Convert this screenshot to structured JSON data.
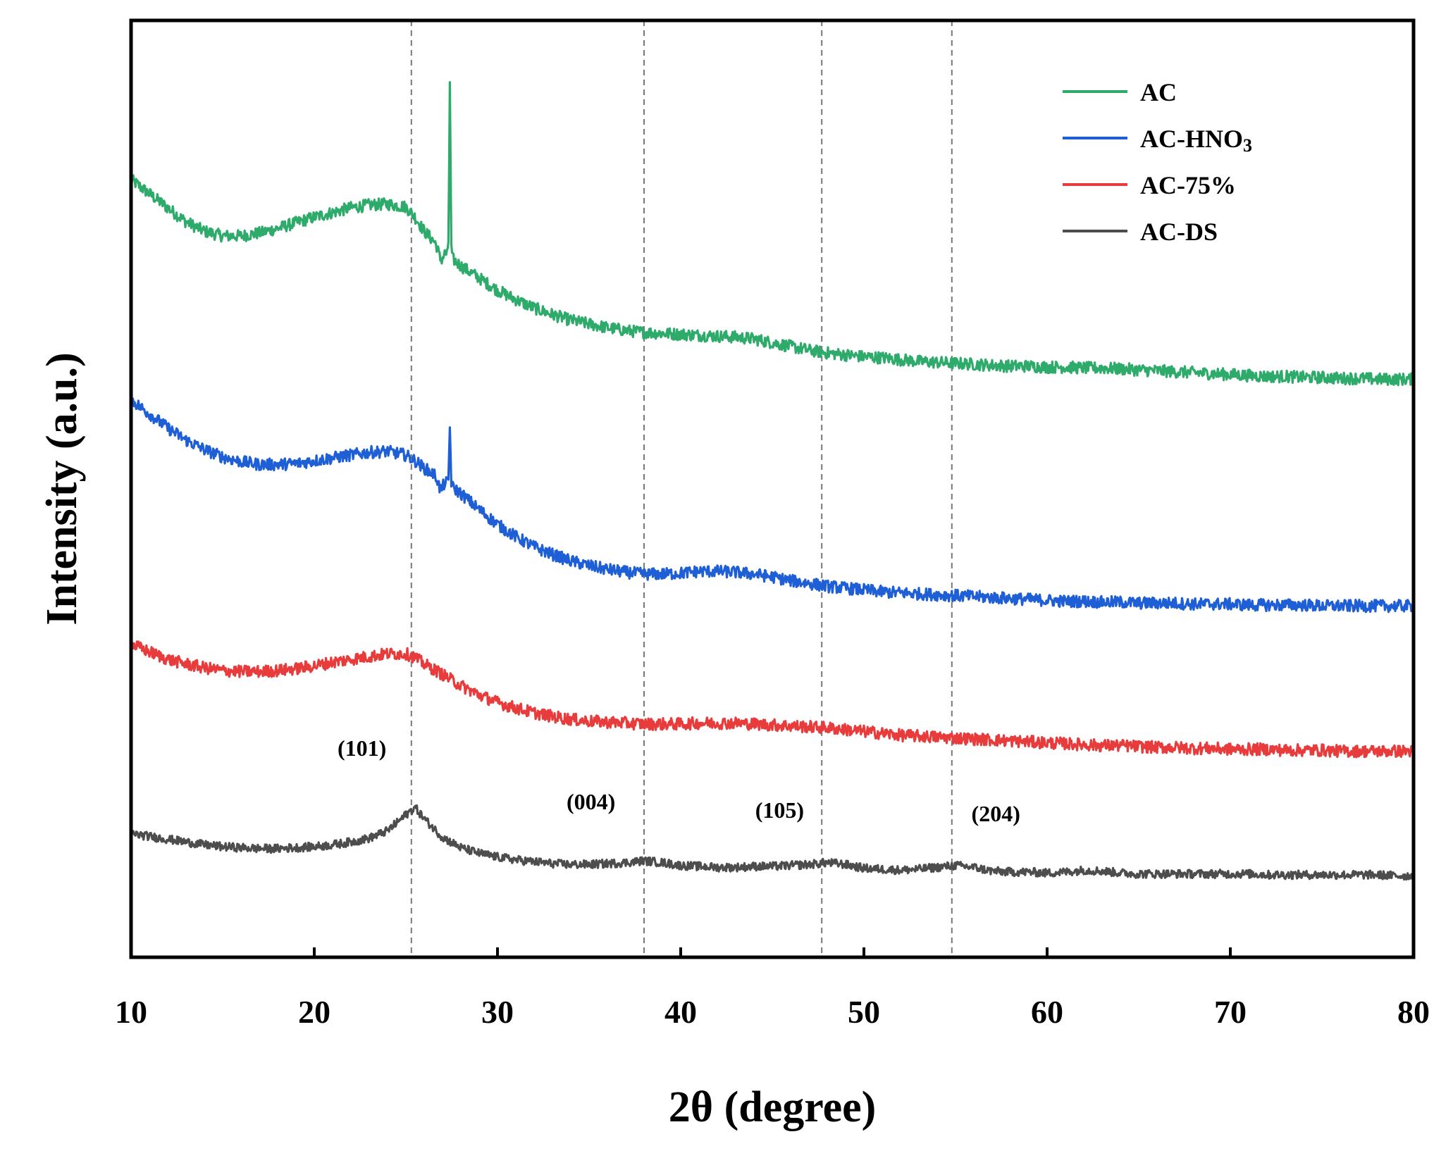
{
  "chart_data": {
    "type": "line",
    "title": "",
    "xlabel": "2θ (degree)",
    "ylabel": "Intensity (a.u.)",
    "xlim": [
      10,
      80
    ],
    "ylim": [
      0,
      1
    ],
    "xticks": [
      "10",
      "20",
      "30",
      "40",
      "50",
      "60",
      "70",
      "80"
    ],
    "x": [
      10,
      11,
      12,
      13,
      14,
      15,
      16,
      17,
      18,
      19,
      20,
      21,
      22,
      23,
      24,
      25,
      25.5,
      26,
      27,
      28,
      29,
      30,
      31,
      32,
      33,
      34,
      35,
      36,
      37,
      38,
      39,
      40,
      41,
      42,
      43,
      44,
      45,
      46,
      47,
      48,
      49,
      50,
      51,
      52,
      53,
      54,
      55,
      56,
      57,
      58,
      59,
      60,
      61,
      62,
      63,
      64,
      65,
      66,
      67,
      68,
      69,
      70,
      71,
      72,
      73,
      74,
      75,
      76,
      77,
      78,
      79,
      80
    ],
    "series": [
      {
        "name": "AC",
        "color": "#2eaa6a",
        "values": [
          0.83,
          0.815,
          0.8,
          0.785,
          0.775,
          0.77,
          0.77,
          0.773,
          0.778,
          0.784,
          0.79,
          0.795,
          0.8,
          0.803,
          0.804,
          0.801,
          0.79,
          0.775,
          0.755,
          0.738,
          0.725,
          0.712,
          0.702,
          0.693,
          0.686,
          0.68,
          0.676,
          0.672,
          0.669,
          0.667,
          0.666,
          0.665,
          0.664,
          0.663,
          0.662,
          0.66,
          0.656,
          0.652,
          0.648,
          0.645,
          0.643,
          0.641,
          0.64,
          0.638,
          0.636,
          0.635,
          0.634,
          0.633,
          0.632,
          0.631,
          0.631,
          0.63,
          0.63,
          0.629,
          0.629,
          0.628,
          0.627,
          0.626,
          0.625,
          0.624,
          0.623,
          0.622,
          0.621,
          0.62,
          0.62,
          0.619,
          0.619,
          0.618,
          0.618,
          0.617,
          0.617,
          0.617
        ],
        "sharp_peak": {
          "x": 27.4,
          "y": 0.935
        }
      },
      {
        "name": "AC-HNO3",
        "color": "#1f5fd6",
        "values": [
          0.595,
          0.58,
          0.565,
          0.552,
          0.542,
          0.534,
          0.529,
          0.526,
          0.526,
          0.527,
          0.53,
          0.533,
          0.536,
          0.539,
          0.54,
          0.536,
          0.53,
          0.522,
          0.51,
          0.495,
          0.478,
          0.462,
          0.449,
          0.438,
          0.43,
          0.423,
          0.418,
          0.414,
          0.411,
          0.409,
          0.409,
          0.41,
          0.412,
          0.412,
          0.411,
          0.409,
          0.406,
          0.402,
          0.399,
          0.396,
          0.394,
          0.392,
          0.39,
          0.389,
          0.388,
          0.387,
          0.386,
          0.385,
          0.384,
          0.383,
          0.382,
          0.381,
          0.38,
          0.38,
          0.379,
          0.379,
          0.378,
          0.378,
          0.378,
          0.377,
          0.377,
          0.377,
          0.376,
          0.376,
          0.376,
          0.376,
          0.375,
          0.375,
          0.375,
          0.375,
          0.375,
          0.375
        ],
        "sharp_peak": {
          "x": 27.4,
          "y": 0.568
        }
      },
      {
        "name": "AC-75%",
        "color": "#e83b3b",
        "values": [
          0.334,
          0.326,
          0.318,
          0.313,
          0.309,
          0.306,
          0.305,
          0.305,
          0.306,
          0.308,
          0.311,
          0.315,
          0.318,
          0.321,
          0.324,
          0.324,
          0.32,
          0.313,
          0.302,
          0.29,
          0.28,
          0.272,
          0.266,
          0.261,
          0.257,
          0.254,
          0.252,
          0.251,
          0.25,
          0.249,
          0.249,
          0.249,
          0.25,
          0.25,
          0.25,
          0.249,
          0.248,
          0.247,
          0.246,
          0.245,
          0.243,
          0.241,
          0.239,
          0.237,
          0.236,
          0.235,
          0.234,
          0.233,
          0.232,
          0.231,
          0.23,
          0.229,
          0.228,
          0.227,
          0.226,
          0.226,
          0.225,
          0.224,
          0.224,
          0.223,
          0.223,
          0.222,
          0.222,
          0.222,
          0.221,
          0.221,
          0.221,
          0.22,
          0.22,
          0.22,
          0.22,
          0.22
        ]
      },
      {
        "name": "AC-DS",
        "color": "#4d4d4d",
        "values": [
          0.132,
          0.129,
          0.126,
          0.123,
          0.12,
          0.118,
          0.117,
          0.116,
          0.116,
          0.117,
          0.118,
          0.12,
          0.123,
          0.127,
          0.135,
          0.152,
          0.16,
          0.148,
          0.128,
          0.117,
          0.111,
          0.107,
          0.104,
          0.102,
          0.1,
          0.099,
          0.099,
          0.1,
          0.101,
          0.103,
          0.101,
          0.098,
          0.097,
          0.096,
          0.096,
          0.097,
          0.097,
          0.098,
          0.099,
          0.101,
          0.099,
          0.095,
          0.094,
          0.093,
          0.094,
          0.096,
          0.098,
          0.096,
          0.092,
          0.091,
          0.091,
          0.09,
          0.091,
          0.093,
          0.092,
          0.09,
          0.089,
          0.089,
          0.089,
          0.089,
          0.089,
          0.089,
          0.089,
          0.088,
          0.088,
          0.088,
          0.088,
          0.088,
          0.088,
          0.088,
          0.087,
          0.087
        ]
      }
    ],
    "reference_lines": [
      25.3,
      38.0,
      47.7,
      54.8
    ],
    "peak_annotations": [
      {
        "label": "(101)",
        "x": 22.6,
        "y": 0.215
      },
      {
        "label": "(004)",
        "x": 35.1,
        "y": 0.158
      },
      {
        "label": "(105)",
        "x": 45.4,
        "y": 0.149
      },
      {
        "label": "(204)",
        "x": 57.2,
        "y": 0.145
      }
    ],
    "legend": {
      "placement": "top-right",
      "entries": [
        {
          "label": "AC",
          "series": 0
        },
        {
          "label": "AC-HNO3",
          "base": "AC-HNO",
          "subscript": "3",
          "series": 1
        },
        {
          "label": "AC-75%",
          "series": 2
        },
        {
          "label": "AC-DS",
          "series": 3
        }
      ]
    },
    "grid": false
  }
}
